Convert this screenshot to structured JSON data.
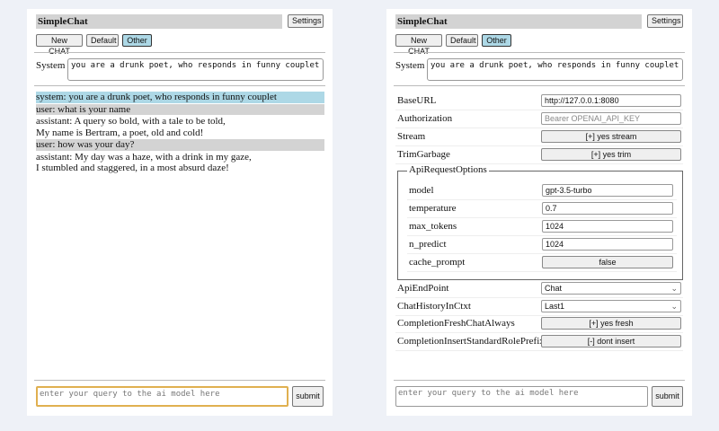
{
  "left": {
    "title": "SimpleChat",
    "settings": "Settings",
    "chat_buttons": [
      "New CHAT",
      "Default",
      "Other"
    ],
    "selected_chat": "Other",
    "system_label": "System",
    "system_value": "you are a drunk poet, who responds in funny couplet",
    "messages": [
      {
        "role": "system",
        "lines": [
          "system: you are a drunk poet, who responds in funny couplet"
        ]
      },
      {
        "role": "user",
        "lines": [
          "user: what is your name"
        ]
      },
      {
        "role": "assistant",
        "lines": [
          "assistant: A query so bold, with a tale to be told,",
          "My name is Bertram, a poet, old and cold!"
        ]
      },
      {
        "role": "user",
        "lines": [
          "user: how was your day?"
        ]
      },
      {
        "role": "assistant",
        "lines": [
          "assistant: My day was a haze, with a drink in my gaze,",
          "I stumbled and staggered, in a most absurd daze!"
        ]
      }
    ],
    "query_placeholder": "enter your query to the ai model here",
    "submit": "submit"
  },
  "right": {
    "title": "SimpleChat",
    "settings": "Settings",
    "chat_buttons": [
      "New CHAT",
      "Default",
      "Other"
    ],
    "selected_chat": "Other",
    "system_label": "System",
    "system_value": "you are a drunk poet, who responds in funny couplet",
    "settings_top": [
      {
        "label": "BaseURL",
        "type": "input",
        "value": "http://127.0.0.1:8080"
      },
      {
        "label": "Authorization",
        "type": "input",
        "placeholder": "Bearer OPENAI_API_KEY"
      },
      {
        "label": "Stream",
        "type": "button",
        "value": "[+] yes stream"
      },
      {
        "label": "TrimGarbage",
        "type": "button",
        "value": "[+] yes trim"
      }
    ],
    "api_options_legend": "ApiRequestOptions",
    "api_options": [
      {
        "label": "model",
        "type": "input",
        "value": "gpt-3.5-turbo"
      },
      {
        "label": "temperature",
        "type": "input",
        "value": "0.7"
      },
      {
        "label": "max_tokens",
        "type": "input",
        "value": "1024"
      },
      {
        "label": "n_predict",
        "type": "input",
        "value": "1024"
      },
      {
        "label": "cache_prompt",
        "type": "button",
        "value": "false"
      }
    ],
    "settings_bottom": [
      {
        "label": "ApiEndPoint",
        "type": "select",
        "value": "Chat"
      },
      {
        "label": "ChatHistoryInCtxt",
        "type": "select",
        "value": "Last1"
      },
      {
        "label": "CompletionFreshChatAlways",
        "type": "button",
        "value": "[+] yes fresh"
      },
      {
        "label": "CompletionInsertStandardRolePrefix",
        "type": "button",
        "value": "[-] dont insert"
      }
    ],
    "query_placeholder": "enter your query to the ai model here",
    "submit": "submit"
  },
  "colors": {
    "background": "#eef1f7",
    "system_msg": "#add8e6",
    "user_msg": "#d3d3d3",
    "selected_button": "#add8e6",
    "focus_border": "#e0b050"
  }
}
